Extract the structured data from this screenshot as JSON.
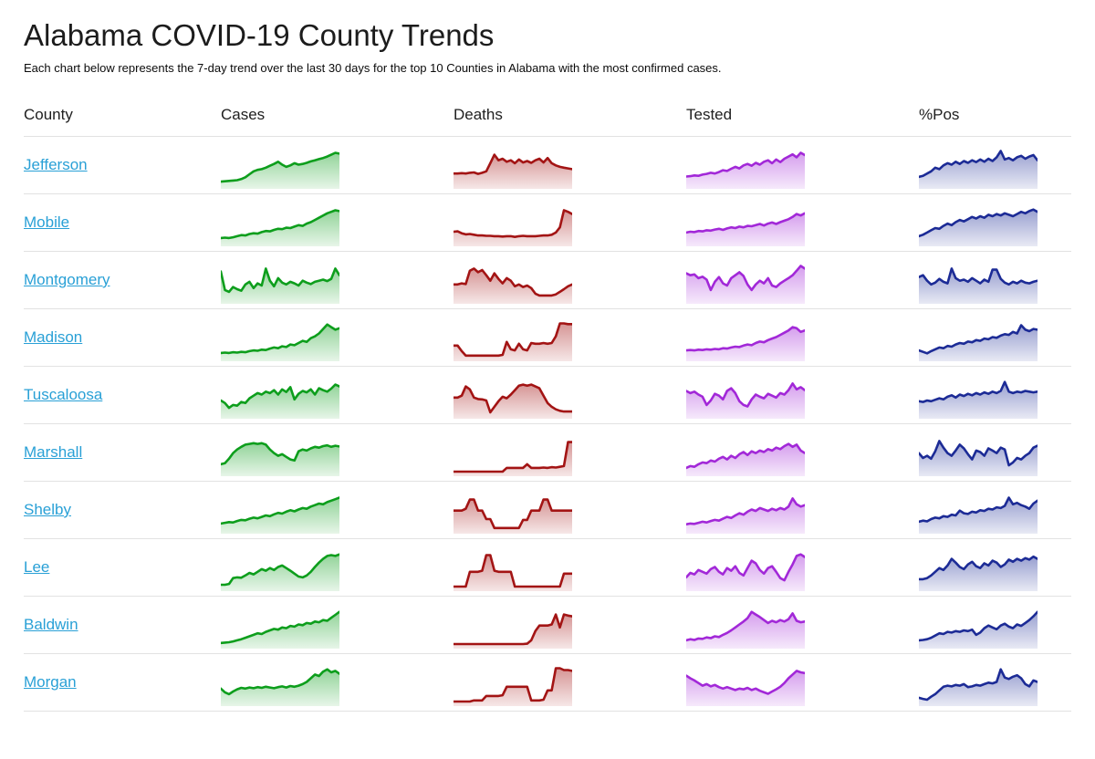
{
  "page": {
    "title": "Alabama COVID-19 County Trends",
    "subtitle": "Each chart below represents the 7-day trend over the last 30 days for the top 10 Counties in Alabama with the most confirmed cases."
  },
  "table": {
    "columns": [
      "County",
      "Cases",
      "Deaths",
      "Tested",
      "%Pos"
    ]
  },
  "colors": {
    "link": "#29a0d6",
    "cases": "#0d9e1c",
    "deaths": "#a31414",
    "tested": "#a228d8",
    "pos": "#1c2b96"
  },
  "chart_data": {
    "type": "line",
    "subtype": "sparkline-table",
    "x": "last 30 days (7-day trend)",
    "units": "relative scale 0-100 (no axes shown in image)",
    "metrics": [
      "cases",
      "deaths",
      "tested",
      "pos"
    ],
    "rows": [
      {
        "county": "Jefferson",
        "cases": [
          12,
          13,
          14,
          15,
          16,
          19,
          24,
          32,
          40,
          44,
          46,
          50,
          55,
          60,
          66,
          58,
          52,
          56,
          62,
          58,
          60,
          63,
          67,
          70,
          73,
          76,
          80,
          85,
          90,
          88
        ],
        "deaths": [
          34,
          34,
          35,
          34,
          36,
          37,
          33,
          36,
          40,
          62,
          85,
          70,
          74,
          66,
          70,
          62,
          72,
          64,
          68,
          63,
          70,
          74,
          64,
          76,
          62,
          56,
          52,
          50,
          48,
          46
        ],
        "tested": [
          26,
          27,
          29,
          28,
          31,
          33,
          36,
          34,
          38,
          43,
          41,
          47,
          52,
          48,
          56,
          60,
          55,
          63,
          58,
          66,
          70,
          62,
          72,
          65,
          74,
          80,
          86,
          78,
          90,
          84
        ],
        "pos": [
          25,
          28,
          34,
          40,
          50,
          46,
          56,
          62,
          58,
          66,
          60,
          68,
          63,
          70,
          65,
          72,
          66,
          74,
          68,
          78,
          95,
          72,
          76,
          70,
          78,
          82,
          74,
          80,
          84,
          70
        ]
      },
      {
        "county": "Mobile",
        "cases": [
          15,
          16,
          15,
          17,
          20,
          23,
          22,
          26,
          28,
          27,
          31,
          34,
          33,
          37,
          40,
          39,
          43,
          42,
          46,
          50,
          48,
          54,
          58,
          64,
          70,
          76,
          82,
          86,
          90,
          88
        ],
        "deaths": [
          32,
          33,
          28,
          25,
          26,
          24,
          22,
          22,
          21,
          21,
          20,
          20,
          19,
          20,
          20,
          18,
          20,
          21,
          20,
          20,
          20,
          21,
          22,
          22,
          24,
          30,
          44,
          90,
          86,
          80
        ],
        "tested": [
          30,
          32,
          31,
          34,
          33,
          36,
          35,
          38,
          40,
          37,
          41,
          44,
          42,
          46,
          44,
          48,
          47,
          50,
          53,
          49,
          54,
          57,
          53,
          58,
          62,
          66,
          72,
          80,
          76,
          82
        ],
        "pos": [
          20,
          24,
          30,
          36,
          42,
          40,
          48,
          54,
          50,
          58,
          64,
          60,
          66,
          72,
          68,
          74,
          70,
          78,
          74,
          80,
          76,
          82,
          78,
          74,
          80,
          86,
          82,
          88,
          92,
          86
        ]
      },
      {
        "county": "Montgomery",
        "cases": [
          80,
          30,
          25,
          38,
          32,
          28,
          45,
          52,
          35,
          48,
          42,
          88,
          55,
          40,
          62,
          50,
          45,
          52,
          48,
          42,
          55,
          50,
          46,
          52,
          55,
          58,
          54,
          60,
          88,
          70
        ],
        "deaths": [
          45,
          45,
          48,
          46,
          82,
          88,
          78,
          84,
          70,
          55,
          75,
          60,
          48,
          62,
          55,
          40,
          45,
          38,
          42,
          35,
          20,
          15,
          15,
          15,
          15,
          18,
          25,
          32,
          40,
          45
        ],
        "tested": [
          75,
          70,
          72,
          62,
          66,
          58,
          30,
          52,
          65,
          48,
          42,
          62,
          70,
          78,
          68,
          45,
          30,
          45,
          55,
          48,
          62,
          42,
          38,
          48,
          55,
          62,
          70,
          82,
          95,
          88
        ],
        "pos": [
          65,
          70,
          55,
          45,
          50,
          60,
          52,
          48,
          88,
          62,
          55,
          58,
          52,
          62,
          55,
          48,
          58,
          52,
          85,
          85,
          60,
          50,
          45,
          52,
          48,
          55,
          50,
          48,
          52,
          55
        ]
      },
      {
        "county": "Madison",
        "cases": [
          15,
          16,
          15,
          17,
          16,
          18,
          17,
          20,
          22,
          21,
          24,
          23,
          27,
          30,
          28,
          33,
          31,
          38,
          36,
          42,
          48,
          45,
          55,
          60,
          68,
          80,
          92,
          85,
          78,
          82
        ],
        "deaths": [
          35,
          35,
          20,
          8,
          8,
          8,
          8,
          8,
          8,
          8,
          8,
          8,
          10,
          45,
          25,
          22,
          40,
          25,
          22,
          42,
          40,
          40,
          42,
          40,
          42,
          60,
          95,
          95,
          93,
          93
        ],
        "tested": [
          22,
          23,
          22,
          24,
          23,
          25,
          24,
          26,
          25,
          28,
          27,
          30,
          32,
          31,
          35,
          38,
          36,
          42,
          46,
          44,
          50,
          54,
          58,
          64,
          70,
          76,
          85,
          82,
          72,
          76
        ],
        "pos": [
          22,
          18,
          14,
          20,
          25,
          30,
          28,
          34,
          32,
          38,
          42,
          40,
          46,
          44,
          50,
          48,
          54,
          52,
          58,
          56,
          62,
          66,
          64,
          72,
          68,
          90,
          78,
          74,
          80,
          78
        ]
      },
      {
        "county": "Tuscaloosa",
        "cases": [
          42,
          35,
          22,
          30,
          28,
          38,
          35,
          48,
          55,
          62,
          58,
          66,
          62,
          70,
          58,
          72,
          65,
          78,
          45,
          60,
          68,
          64,
          72,
          58,
          75,
          70,
          66,
          74,
          85,
          80
        ],
        "deaths": [
          50,
          50,
          55,
          80,
          72,
          50,
          46,
          45,
          42,
          10,
          25,
          40,
          52,
          48,
          58,
          70,
          82,
          85,
          82,
          85,
          80,
          75,
          55,
          35,
          25,
          18,
          14,
          12,
          12,
          12
        ],
        "tested": [
          68,
          62,
          66,
          58,
          52,
          30,
          42,
          60,
          55,
          45,
          68,
          75,
          62,
          40,
          30,
          26,
          45,
          58,
          52,
          48,
          60,
          55,
          50,
          62,
          58,
          70,
          88,
          72,
          78,
          70
        ],
        "pos": [
          40,
          38,
          42,
          40,
          44,
          48,
          45,
          52,
          56,
          50,
          58,
          54,
          60,
          56,
          62,
          58,
          64,
          60,
          66,
          62,
          68,
          92,
          66,
          62,
          66,
          64,
          68,
          66,
          64,
          66
        ]
      },
      {
        "county": "Marshall",
        "cases": [
          25,
          28,
          40,
          55,
          65,
          72,
          78,
          80,
          82,
          80,
          82,
          78,
          65,
          55,
          48,
          52,
          45,
          38,
          35,
          60,
          65,
          62,
          68,
          72,
          70,
          74,
          76,
          72,
          75,
          73
        ],
        "deaths": [
          5,
          5,
          5,
          5,
          5,
          5,
          5,
          5,
          5,
          5,
          5,
          5,
          5,
          15,
          15,
          15,
          15,
          15,
          25,
          15,
          15,
          15,
          16,
          15,
          17,
          16,
          18,
          20,
          85,
          85
        ],
        "tested": [
          15,
          20,
          18,
          25,
          30,
          28,
          35,
          32,
          40,
          45,
          38,
          48,
          42,
          52,
          58,
          50,
          60,
          55,
          62,
          58,
          66,
          62,
          70,
          66,
          74,
          80,
          72,
          78,
          62,
          55
        ],
        "pos": [
          55,
          42,
          48,
          40,
          60,
          88,
          70,
          55,
          48,
          62,
          78,
          68,
          52,
          38,
          62,
          58,
          48,
          68,
          62,
          55,
          70,
          65,
          22,
          30,
          42,
          38,
          48,
          55,
          70,
          75
        ]
      },
      {
        "county": "Shelby",
        "cases": [
          20,
          22,
          24,
          23,
          27,
          30,
          29,
          33,
          36,
          34,
          38,
          42,
          40,
          45,
          49,
          47,
          52,
          56,
          53,
          58,
          62,
          60,
          66,
          70,
          74,
          72,
          78,
          82,
          86,
          90
        ],
        "deaths": [
          55,
          55,
          55,
          60,
          85,
          85,
          55,
          55,
          32,
          32,
          8,
          8,
          8,
          8,
          8,
          8,
          8,
          30,
          30,
          55,
          55,
          55,
          85,
          85,
          55,
          55,
          55,
          55,
          55,
          55
        ],
        "tested": [
          18,
          20,
          19,
          22,
          25,
          23,
          27,
          30,
          28,
          33,
          38,
          35,
          42,
          48,
          44,
          52,
          58,
          54,
          62,
          58,
          54,
          60,
          56,
          62,
          58,
          66,
          88,
          72,
          66,
          70
        ],
        "pos": [
          25,
          28,
          26,
          32,
          36,
          34,
          40,
          38,
          44,
          42,
          55,
          48,
          46,
          52,
          50,
          56,
          54,
          60,
          58,
          64,
          62,
          68,
          90,
          72,
          76,
          70,
          66,
          60,
          74,
          82
        ]
      },
      {
        "county": "Lee",
        "cases": [
          10,
          10,
          12,
          28,
          30,
          29,
          35,
          42,
          38,
          45,
          52,
          48,
          55,
          50,
          58,
          62,
          55,
          48,
          40,
          32,
          30,
          35,
          45,
          58,
          70,
          80,
          88,
          90,
          88,
          92
        ],
        "deaths": [
          5,
          5,
          5,
          5,
          45,
          45,
          45,
          48,
          90,
          90,
          48,
          45,
          45,
          45,
          45,
          5,
          5,
          5,
          5,
          5,
          5,
          5,
          5,
          5,
          5,
          5,
          5,
          40,
          40,
          40
        ],
        "tested": [
          30,
          42,
          38,
          50,
          45,
          40,
          52,
          58,
          45,
          38,
          55,
          48,
          60,
          42,
          35,
          55,
          75,
          68,
          50,
          40,
          55,
          60,
          45,
          28,
          22,
          45,
          65,
          88,
          92,
          85
        ],
        "pos": [
          25,
          25,
          28,
          35,
          45,
          55,
          50,
          62,
          80,
          70,
          58,
          52,
          65,
          72,
          60,
          55,
          68,
          62,
          75,
          70,
          58,
          65,
          78,
          72,
          80,
          75,
          82,
          78,
          86,
          80
        ]
      },
      {
        "county": "Baldwin",
        "cases": [
          8,
          9,
          10,
          12,
          15,
          18,
          22,
          26,
          30,
          34,
          32,
          38,
          42,
          46,
          44,
          50,
          48,
          54,
          52,
          58,
          56,
          62,
          60,
          66,
          64,
          70,
          68,
          76,
          84,
          92
        ],
        "deaths": [
          5,
          5,
          5,
          5,
          5,
          5,
          5,
          5,
          5,
          5,
          5,
          5,
          5,
          5,
          5,
          5,
          5,
          5,
          6,
          15,
          40,
          55,
          55,
          55,
          58,
          85,
          50,
          85,
          82,
          80
        ],
        "tested": [
          15,
          18,
          16,
          20,
          19,
          23,
          21,
          26,
          24,
          30,
          35,
          42,
          50,
          58,
          66,
          75,
          92,
          85,
          78,
          70,
          62,
          68,
          64,
          70,
          66,
          72,
          88,
          68,
          64,
          66
        ],
        "pos": [
          15,
          16,
          18,
          22,
          28,
          34,
          32,
          38,
          36,
          40,
          38,
          42,
          40,
          44,
          30,
          36,
          48,
          55,
          50,
          45,
          55,
          60,
          52,
          48,
          58,
          54,
          62,
          70,
          80,
          92
        ]
      },
      {
        "county": "Morgan",
        "cases": [
          40,
          30,
          25,
          32,
          38,
          42,
          40,
          43,
          41,
          44,
          42,
          45,
          43,
          41,
          44,
          46,
          43,
          47,
          45,
          48,
          52,
          58,
          68,
          78,
          74,
          86,
          92,
          84,
          88,
          80
        ],
        "deaths": [
          5,
          5,
          5,
          5,
          5,
          8,
          8,
          8,
          20,
          20,
          20,
          20,
          22,
          45,
          45,
          45,
          45,
          45,
          45,
          8,
          8,
          8,
          10,
          35,
          35,
          95,
          95,
          90,
          90,
          88
        ],
        "tested": [
          75,
          68,
          62,
          55,
          48,
          52,
          46,
          50,
          44,
          40,
          44,
          40,
          36,
          40,
          38,
          42,
          36,
          40,
          34,
          30,
          26,
          32,
          38,
          45,
          55,
          68,
          78,
          88,
          84,
          82
        ],
        "pos": [
          15,
          12,
          10,
          18,
          25,
          35,
          45,
          48,
          46,
          50,
          48,
          52,
          44,
          46,
          50,
          48,
          52,
          56,
          54,
          58,
          92,
          70,
          66,
          72,
          76,
          68,
          52,
          46,
          62,
          58
        ]
      }
    ]
  }
}
